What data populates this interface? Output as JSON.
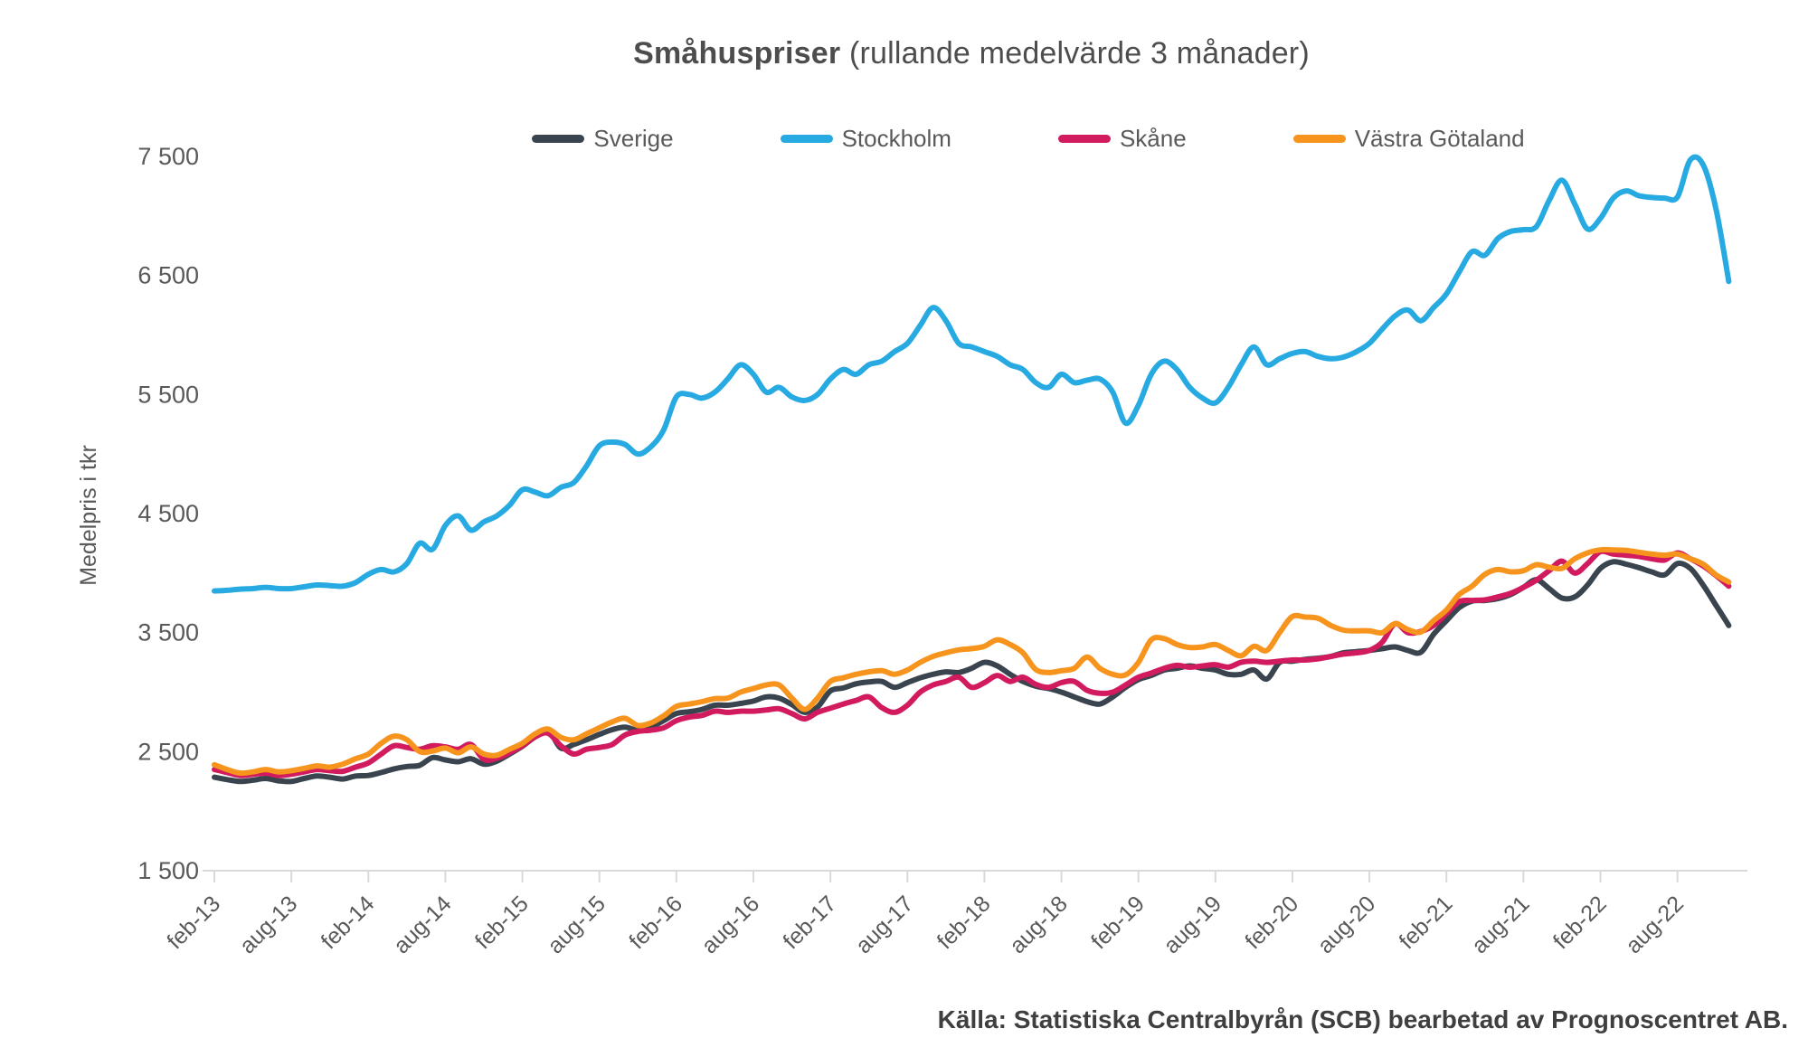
{
  "page": {
    "title": "Småhuspriser",
    "title_suffix": " (rullande medelvärde 3 månader)",
    "source": "Källa: Statistiska Centralbyrån (SCB) bearbetad av Prognoscentret AB."
  },
  "chart_data": {
    "type": "line",
    "title": "Småhuspriser (rullande medelvärde 3 månader)",
    "ylabel": "Medelpris i tkr",
    "unit": "tkr",
    "ylim": [
      1500,
      7500
    ],
    "grid": false,
    "legend_position": "top",
    "axis_color": "#d9d9d9",
    "text_color": "#595959",
    "frequency": "monthly",
    "x_start": "feb-13",
    "x_end": "dec-22",
    "y_ticks": [
      {
        "label": "7 500",
        "value": 7500
      },
      {
        "label": "6 500",
        "value": 6500
      },
      {
        "label": "5 500",
        "value": 5500
      },
      {
        "label": "4 500",
        "value": 4500
      },
      {
        "label": "3 500",
        "value": 3500
      },
      {
        "label": "2 500",
        "value": 2500
      },
      {
        "label": "1 500",
        "value": 1500
      }
    ],
    "x_tick_labels": [
      "feb-13",
      "aug-13",
      "feb-14",
      "aug-14",
      "feb-15",
      "aug-15",
      "feb-16",
      "aug-16",
      "feb-17",
      "aug-17",
      "feb-18",
      "aug-18",
      "feb-19",
      "aug-19",
      "feb-20",
      "aug-20",
      "feb-21",
      "aug-21",
      "feb-22",
      "aug-22"
    ],
    "series": [
      {
        "name": "Sverige",
        "color": "#39444e",
        "values": [
          2285,
          2265,
          2250,
          2260,
          2275,
          2255,
          2250,
          2275,
          2295,
          2285,
          2270,
          2295,
          2300,
          2325,
          2355,
          2375,
          2385,
          2450,
          2430,
          2415,
          2440,
          2395,
          2420,
          2480,
          2545,
          2625,
          2680,
          2530,
          2560,
          2600,
          2645,
          2685,
          2705,
          2680,
          2705,
          2760,
          2820,
          2835,
          2855,
          2890,
          2890,
          2905,
          2925,
          2960,
          2950,
          2895,
          2830,
          2875,
          3010,
          3035,
          3070,
          3085,
          3090,
          3040,
          3080,
          3120,
          3150,
          3170,
          3165,
          3200,
          3250,
          3220,
          3150,
          3090,
          3050,
          3030,
          3000,
          2960,
          2920,
          2900,
          2960,
          3040,
          3105,
          3140,
          3185,
          3200,
          3220,
          3200,
          3185,
          3150,
          3150,
          3185,
          3110,
          3250,
          3260,
          3275,
          3285,
          3300,
          3330,
          3340,
          3350,
          3365,
          3380,
          3350,
          3335,
          3485,
          3600,
          3710,
          3765,
          3770,
          3785,
          3820,
          3880,
          3945,
          3870,
          3790,
          3800,
          3900,
          4040,
          4095,
          4075,
          4045,
          4010,
          3985,
          4080,
          4040,
          3900,
          3730,
          3560
        ]
      },
      {
        "name": "Stockholm",
        "color": "#27aae1",
        "values": [
          3850,
          3855,
          3865,
          3870,
          3880,
          3870,
          3870,
          3885,
          3900,
          3895,
          3890,
          3920,
          3990,
          4030,
          4010,
          4080,
          4250,
          4200,
          4400,
          4480,
          4360,
          4430,
          4480,
          4570,
          4700,
          4680,
          4650,
          4720,
          4760,
          4900,
          5070,
          5100,
          5080,
          5000,
          5060,
          5200,
          5480,
          5500,
          5470,
          5520,
          5630,
          5750,
          5670,
          5520,
          5560,
          5480,
          5450,
          5500,
          5630,
          5710,
          5670,
          5750,
          5780,
          5860,
          5930,
          6080,
          6230,
          6120,
          5930,
          5900,
          5860,
          5820,
          5750,
          5710,
          5600,
          5560,
          5670,
          5600,
          5620,
          5630,
          5520,
          5260,
          5410,
          5670,
          5780,
          5710,
          5560,
          5470,
          5430,
          5560,
          5750,
          5900,
          5750,
          5800,
          5845,
          5860,
          5820,
          5800,
          5815,
          5860,
          5930,
          6050,
          6160,
          6210,
          6120,
          6230,
          6345,
          6530,
          6700,
          6670,
          6810,
          6870,
          6885,
          6910,
          7130,
          7300,
          7100,
          6890,
          6980,
          7150,
          7210,
          7170,
          7155,
          7150,
          7160,
          7470,
          7430,
          7060,
          6450
        ]
      },
      {
        "name": "Skåne",
        "color": "#d11b5e",
        "values": [
          2350,
          2325,
          2300,
          2310,
          2320,
          2300,
          2310,
          2330,
          2350,
          2340,
          2335,
          2370,
          2405,
          2480,
          2550,
          2535,
          2520,
          2550,
          2540,
          2520,
          2560,
          2435,
          2445,
          2490,
          2550,
          2625,
          2655,
          2550,
          2480,
          2520,
          2535,
          2560,
          2640,
          2670,
          2680,
          2700,
          2760,
          2790,
          2805,
          2840,
          2830,
          2840,
          2840,
          2850,
          2860,
          2820,
          2775,
          2830,
          2865,
          2900,
          2930,
          2960,
          2870,
          2830,
          2890,
          3000,
          3060,
          3090,
          3125,
          3040,
          3080,
          3140,
          3090,
          3125,
          3065,
          3040,
          3080,
          3090,
          3015,
          2990,
          3000,
          3060,
          3125,
          3160,
          3200,
          3225,
          3210,
          3220,
          3230,
          3210,
          3250,
          3260,
          3250,
          3260,
          3270,
          3270,
          3280,
          3300,
          3320,
          3330,
          3350,
          3420,
          3575,
          3500,
          3510,
          3560,
          3660,
          3760,
          3770,
          3775,
          3800,
          3830,
          3880,
          3940,
          4020,
          4100,
          4000,
          4080,
          4180,
          4160,
          4150,
          4140,
          4120,
          4110,
          4170,
          4120,
          4060,
          3980,
          3890
        ]
      },
      {
        "name": "Västra Götaland",
        "color": "#f7941d",
        "values": [
          2390,
          2350,
          2320,
          2330,
          2350,
          2330,
          2340,
          2360,
          2380,
          2370,
          2395,
          2440,
          2480,
          2570,
          2630,
          2600,
          2500,
          2505,
          2530,
          2490,
          2540,
          2480,
          2470,
          2520,
          2570,
          2650,
          2690,
          2620,
          2600,
          2650,
          2700,
          2750,
          2780,
          2720,
          2740,
          2800,
          2880,
          2900,
          2920,
          2945,
          2950,
          3000,
          3030,
          3060,
          3060,
          2950,
          2855,
          2950,
          3090,
          3120,
          3150,
          3170,
          3180,
          3150,
          3185,
          3250,
          3300,
          3330,
          3355,
          3365,
          3385,
          3440,
          3400,
          3330,
          3190,
          3165,
          3180,
          3200,
          3295,
          3200,
          3150,
          3145,
          3250,
          3440,
          3450,
          3400,
          3375,
          3380,
          3400,
          3350,
          3305,
          3385,
          3350,
          3500,
          3635,
          3630,
          3620,
          3560,
          3520,
          3515,
          3515,
          3500,
          3575,
          3525,
          3505,
          3600,
          3690,
          3820,
          3890,
          3990,
          4030,
          4010,
          4020,
          4070,
          4050,
          4040,
          4120,
          4170,
          4195,
          4195,
          4190,
          4175,
          4160,
          4150,
          4160,
          4120,
          4075,
          3985,
          3925
        ]
      }
    ]
  }
}
